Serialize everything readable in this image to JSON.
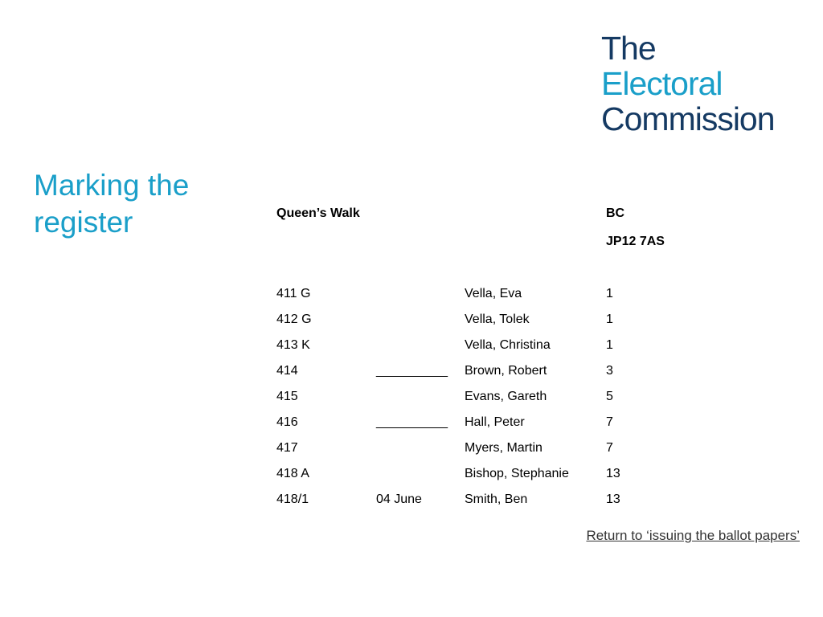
{
  "colors": {
    "accent": "#1a9fc9",
    "logo_dark": "#153a63"
  },
  "logo": {
    "line1": "The",
    "line2": "Electoral",
    "line3": "Commission"
  },
  "title": "Marking the register",
  "register": {
    "street": "Queen’s Walk",
    "district_code": "BC",
    "polling_district": "JP12 7AS",
    "rows": [
      {
        "number": "411  G",
        "mark": "",
        "name": "Vella, Eva",
        "address": "1"
      },
      {
        "number": "412  G",
        "mark": "",
        "name": "Vella, Tolek",
        "address": "1"
      },
      {
        "number": "413  K",
        "mark": "",
        "name": "Vella, Christina",
        "address": "1"
      },
      {
        "number": "414",
        "mark": "__________",
        "name": "Brown, Robert",
        "address": "3"
      },
      {
        "number": "415",
        "mark": "",
        "name": "Evans, Gareth",
        "address": "5"
      },
      {
        "number": "416",
        "mark": "__________",
        "name": "Hall, Peter",
        "address": "7"
      },
      {
        "number": "417",
        "mark": "",
        "name": "Myers, Martin",
        "address": "7"
      },
      {
        "number": "418  A",
        "mark": "",
        "name": "Bishop, Stephanie",
        "address": "13"
      },
      {
        "number": "418/1",
        "mark": "04 June",
        "name": "Smith, Ben",
        "address": "13"
      }
    ]
  },
  "return_link": "Return to ‘issuing the ballot papers’"
}
